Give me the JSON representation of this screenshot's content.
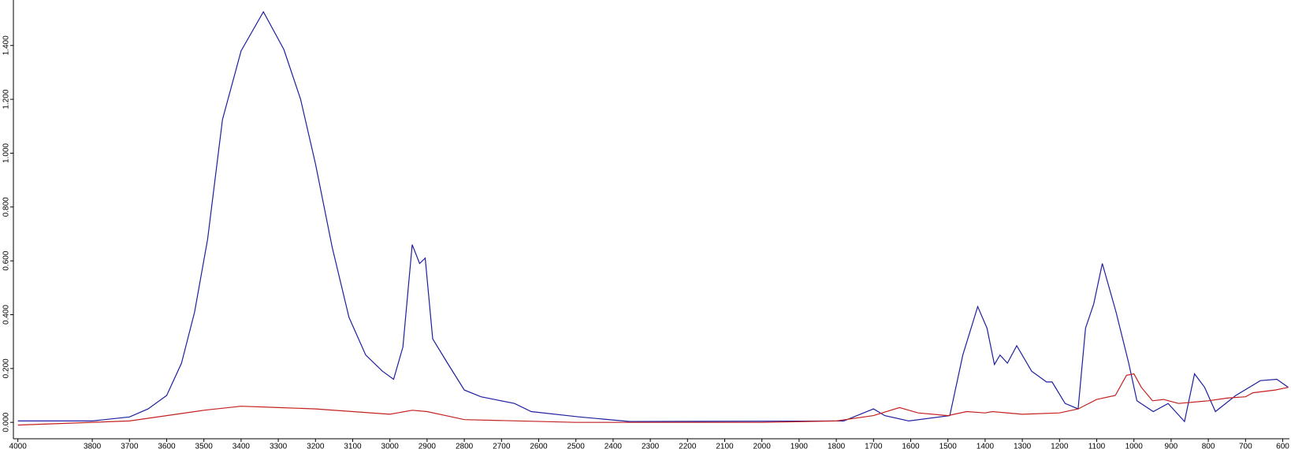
{
  "chart_data": {
    "type": "line",
    "xlim": [
      4012,
      582
    ],
    "xticks": [
      4000,
      3800,
      3700,
      3600,
      3500,
      3400,
      3300,
      3200,
      3100,
      3000,
      2900,
      2800,
      2700,
      2600,
      2500,
      2400,
      2300,
      2200,
      2100,
      2000,
      1900,
      1800,
      1700,
      1600,
      1500,
      1400,
      1300,
      1200,
      1100,
      1000,
      900,
      800,
      700,
      600
    ],
    "ylim": [
      -0.061,
      1.569
    ],
    "yticks": [
      {
        "value": 0,
        "label": "0.000"
      },
      {
        "value": 0.2,
        "label": "0.200"
      },
      {
        "value": 0.4,
        "label": "0.400"
      },
      {
        "value": 0.6,
        "label": "0.600"
      },
      {
        "value": 0.8,
        "label": "0.800"
      },
      {
        "value": 1.0,
        "label": "1.000"
      },
      {
        "value": 1.2,
        "label": "1.200"
      },
      {
        "value": 1.4,
        "label": "1.400"
      }
    ],
    "series": [
      {
        "color": "#1f1f9e",
        "x": [
          4000,
          3800,
          3700,
          3650,
          3600,
          3560,
          3525,
          3490,
          3450,
          3400,
          3340,
          3285,
          3240,
          3200,
          3155,
          3110,
          3065,
          3020,
          2990,
          2965,
          2940,
          2920,
          2905,
          2885,
          2845,
          2800,
          2755,
          2665,
          2620,
          2490,
          2355,
          1780,
          1700,
          1670,
          1605,
          1495,
          1460,
          1420,
          1395,
          1375,
          1360,
          1340,
          1315,
          1275,
          1235,
          1220,
          1185,
          1150,
          1130,
          1108,
          1085,
          1048,
          1014,
          992,
          948,
          908,
          864,
          837,
          810,
          781,
          726,
          660,
          616,
          585
        ],
        "values": [
          0.005,
          0.005,
          0.02,
          0.05,
          0.1,
          0.22,
          0.41,
          0.68,
          1.125,
          1.38,
          1.525,
          1.385,
          1.2,
          0.96,
          0.65,
          0.39,
          0.25,
          0.19,
          0.16,
          0.28,
          0.66,
          0.59,
          0.61,
          0.31,
          0.22,
          0.12,
          0.095,
          0.07,
          0.04,
          0.02,
          0.003,
          0.005,
          0.05,
          0.025,
          0.005,
          0.025,
          0.25,
          0.43,
          0.35,
          0.215,
          0.25,
          0.22,
          0.285,
          0.19,
          0.15,
          0.15,
          0.07,
          0.05,
          0.35,
          0.44,
          0.59,
          0.41,
          0.22,
          0.08,
          0.04,
          0.07,
          0.003,
          0.18,
          0.13,
          0.04,
          0.1,
          0.155,
          0.16,
          0.13
        ]
      },
      {
        "color": "#c42020",
        "x": [
          4000,
          3700,
          3600,
          3500,
          3400,
          3300,
          3200,
          3100,
          3000,
          2940,
          2900,
          2850,
          2800,
          2500,
          2000,
          1800,
          1700,
          1630,
          1580,
          1500,
          1450,
          1400,
          1380,
          1300,
          1200,
          1150,
          1100,
          1050,
          1020,
          1000,
          980,
          950,
          920,
          880,
          800,
          750,
          700,
          680,
          620,
          585
        ],
        "values": [
          -0.01,
          0.005,
          0.025,
          0.045,
          0.06,
          0.055,
          0.05,
          0.04,
          0.03,
          0.045,
          0.04,
          0.025,
          0.01,
          0.0,
          0.0,
          0.005,
          0.025,
          0.055,
          0.035,
          0.025,
          0.04,
          0.035,
          0.04,
          0.03,
          0.035,
          0.05,
          0.085,
          0.1,
          0.175,
          0.18,
          0.13,
          0.08,
          0.085,
          0.07,
          0.08,
          0.09,
          0.095,
          0.11,
          0.12,
          0.13
        ]
      }
    ]
  }
}
